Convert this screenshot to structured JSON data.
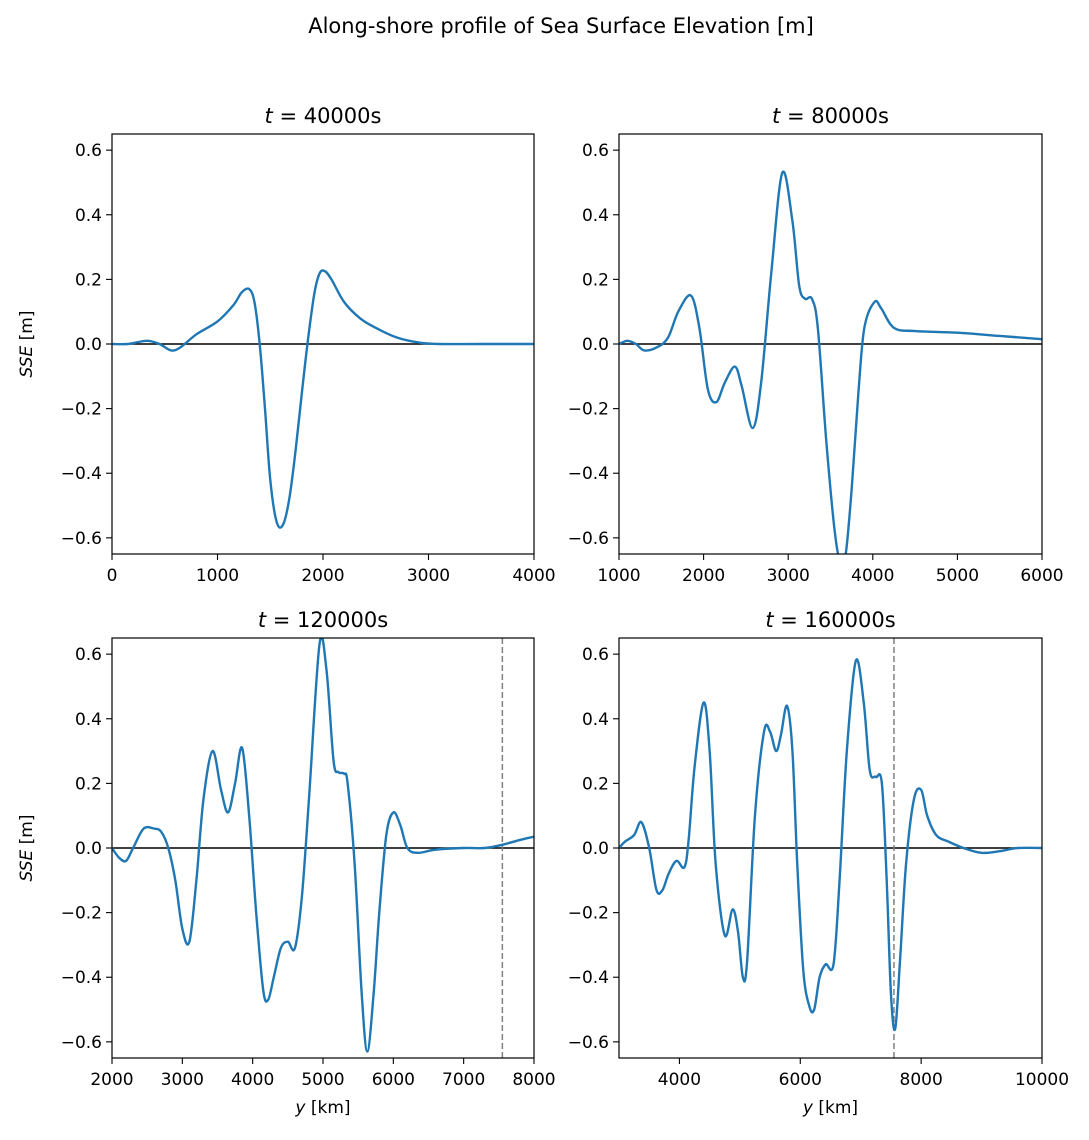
{
  "figure": {
    "suptitle": "Along-shore profile of Sea Surface Elevation [m]"
  },
  "chart_data": [
    {
      "type": "line",
      "title_var": "t",
      "title_eq": " = 40000s",
      "ylabel_var": "SSE",
      "ylabel_unit": " [m]",
      "xlabel_var": "",
      "xlabel_unit": "",
      "xlim": [
        0,
        4000
      ],
      "ylim": [
        -0.65,
        0.65
      ],
      "xticks": [
        0,
        1000,
        2000,
        3000,
        4000
      ],
      "xtick_labels": [
        "0",
        "1000",
        "2000",
        "3000",
        "4000"
      ],
      "yticks": [
        -0.6,
        -0.4,
        -0.2,
        0.0,
        0.2,
        0.4,
        0.6
      ],
      "ytick_labels": [
        "−0.6",
        "−0.4",
        "−0.2",
        "0.0",
        "0.2",
        "0.4",
        "0.6"
      ],
      "zero_line": true,
      "vline": null,
      "line_color": "#1f77b4",
      "series": [
        {
          "x": [
            0,
            150,
            330,
            450,
            560,
            650,
            800,
            1000,
            1150,
            1230,
            1300,
            1350,
            1400,
            1450,
            1500,
            1560,
            1620,
            1680,
            1740,
            1800,
            1860,
            1920,
            1970,
            2020,
            2080,
            2200,
            2350,
            2500,
            2700,
            2900,
            3100,
            3500,
            4000
          ],
          "y": [
            0.0,
            0.0,
            0.01,
            0.0,
            -0.02,
            -0.01,
            0.03,
            0.07,
            0.12,
            0.16,
            0.17,
            0.13,
            0.0,
            -0.2,
            -0.42,
            -0.55,
            -0.56,
            -0.48,
            -0.33,
            -0.15,
            0.02,
            0.16,
            0.22,
            0.225,
            0.2,
            0.13,
            0.08,
            0.05,
            0.02,
            0.005,
            0.0,
            0.0,
            0.0
          ]
        }
      ]
    },
    {
      "type": "line",
      "title_var": "t",
      "title_eq": " = 80000s",
      "ylabel_var": "",
      "ylabel_unit": "",
      "xlabel_var": "",
      "xlabel_unit": "",
      "xlim": [
        1000,
        6000
      ],
      "ylim": [
        -0.65,
        0.65
      ],
      "xticks": [
        1000,
        2000,
        3000,
        4000,
        5000,
        6000
      ],
      "xtick_labels": [
        "1000",
        "2000",
        "3000",
        "4000",
        "5000",
        "6000"
      ],
      "yticks": [
        -0.6,
        -0.4,
        -0.2,
        0.0,
        0.2,
        0.4,
        0.6
      ],
      "ytick_labels": [
        "−0.6",
        "−0.4",
        "−0.2",
        "0.0",
        "0.2",
        "0.4",
        "0.6"
      ],
      "zero_line": true,
      "vline": null,
      "line_color": "#1f77b4",
      "series": [
        {
          "x": [
            1000,
            1100,
            1200,
            1300,
            1450,
            1580,
            1700,
            1850,
            1950,
            2050,
            2150,
            2250,
            2370,
            2450,
            2580,
            2680,
            2800,
            2930,
            3050,
            3130,
            3200,
            3280,
            3350,
            3450,
            3550,
            3620,
            3680,
            3750,
            3830,
            3900,
            4020,
            4100,
            4250,
            4500,
            5000,
            5500,
            6000
          ],
          "y": [
            0.0,
            0.01,
            0.0,
            -0.02,
            -0.01,
            0.02,
            0.1,
            0.15,
            0.05,
            -0.14,
            -0.18,
            -0.12,
            -0.07,
            -0.13,
            -0.26,
            -0.12,
            0.22,
            0.53,
            0.38,
            0.18,
            0.14,
            0.14,
            0.05,
            -0.3,
            -0.58,
            -0.68,
            -0.65,
            -0.45,
            -0.15,
            0.05,
            0.13,
            0.11,
            0.05,
            0.04,
            0.035,
            0.025,
            0.015
          ]
        }
      ]
    },
    {
      "type": "line",
      "title_var": "t",
      "title_eq": " = 120000s",
      "ylabel_var": "SSE",
      "ylabel_unit": " [m]",
      "xlabel_var": "y",
      "xlabel_unit": " [km]",
      "xlim": [
        2000,
        8000
      ],
      "ylim": [
        -0.65,
        0.65
      ],
      "xticks": [
        2000,
        3000,
        4000,
        5000,
        6000,
        7000,
        8000
      ],
      "xtick_labels": [
        "2000",
        "3000",
        "4000",
        "5000",
        "6000",
        "7000",
        "8000"
      ],
      "yticks": [
        -0.6,
        -0.4,
        -0.2,
        0.0,
        0.2,
        0.4,
        0.6
      ],
      "ytick_labels": [
        "−0.6",
        "−0.4",
        "−0.2",
        "0.0",
        "0.2",
        "0.4",
        "0.6"
      ],
      "zero_line": true,
      "vline": 7550,
      "line_color": "#1f77b4",
      "series": [
        {
          "x": [
            2000,
            2100,
            2200,
            2300,
            2450,
            2600,
            2700,
            2800,
            2900,
            3000,
            3100,
            3200,
            3300,
            3430,
            3550,
            3650,
            3750,
            3850,
            3950,
            4050,
            4150,
            4220,
            4300,
            4400,
            4500,
            4600,
            4700,
            4800,
            4950,
            5050,
            5150,
            5220,
            5300,
            5350,
            5450,
            5550,
            5630,
            5720,
            5800,
            5900,
            6000,
            6100,
            6200,
            6350,
            6600,
            7000,
            7300,
            7550,
            7800,
            8000
          ],
          "y": [
            0.0,
            -0.03,
            -0.04,
            0.0,
            0.06,
            0.06,
            0.05,
            0.0,
            -0.1,
            -0.25,
            -0.29,
            -0.1,
            0.15,
            0.3,
            0.18,
            0.11,
            0.2,
            0.31,
            0.1,
            -0.2,
            -0.44,
            -0.47,
            -0.4,
            -0.31,
            -0.29,
            -0.31,
            -0.15,
            0.15,
            0.63,
            0.55,
            0.27,
            0.235,
            0.23,
            0.2,
            -0.05,
            -0.45,
            -0.63,
            -0.45,
            -0.2,
            0.04,
            0.11,
            0.07,
            0.0,
            -0.015,
            -0.005,
            0.0,
            0.0,
            0.01,
            0.025,
            0.035
          ]
        }
      ]
    },
    {
      "type": "line",
      "title_var": "t",
      "title_eq": " = 160000s",
      "ylabel_var": "",
      "ylabel_unit": "",
      "xlabel_var": "y",
      "xlabel_unit": " [km]",
      "xlim": [
        3000,
        10000
      ],
      "ylim": [
        -0.65,
        0.65
      ],
      "xticks": [
        4000,
        6000,
        8000,
        10000
      ],
      "xtick_labels": [
        "4000",
        "6000",
        "8000",
        "10000"
      ],
      "yticks": [
        -0.6,
        -0.4,
        -0.2,
        0.0,
        0.2,
        0.4,
        0.6
      ],
      "ytick_labels": [
        "−0.6",
        "−0.4",
        "−0.2",
        "0.0",
        "0.2",
        "0.4",
        "0.6"
      ],
      "zero_line": true,
      "vline": 7550,
      "line_color": "#1f77b4",
      "series": [
        {
          "x": [
            3000,
            3100,
            3250,
            3370,
            3500,
            3620,
            3720,
            3820,
            3950,
            4080,
            4150,
            4250,
            4400,
            4500,
            4600,
            4750,
            4880,
            4970,
            5050,
            5120,
            5250,
            5400,
            5500,
            5600,
            5680,
            5780,
            5870,
            5950,
            6050,
            6150,
            6230,
            6320,
            6420,
            6550,
            6650,
            6770,
            6920,
            7050,
            7150,
            7250,
            7350,
            7430,
            7500,
            7570,
            7650,
            7750,
            7880,
            8000,
            8100,
            8250,
            8450,
            8700,
            9000,
            9300,
            9600,
            10000
          ],
          "y": [
            0.0,
            0.02,
            0.04,
            0.08,
            0.0,
            -0.13,
            -0.13,
            -0.08,
            -0.04,
            -0.06,
            0.02,
            0.25,
            0.45,
            0.3,
            -0.05,
            -0.27,
            -0.19,
            -0.26,
            -0.4,
            -0.35,
            0.1,
            0.36,
            0.36,
            0.3,
            0.35,
            0.44,
            0.3,
            -0.05,
            -0.38,
            -0.49,
            -0.5,
            -0.4,
            -0.36,
            -0.36,
            -0.1,
            0.3,
            0.58,
            0.45,
            0.24,
            0.22,
            0.2,
            -0.1,
            -0.45,
            -0.56,
            -0.35,
            -0.05,
            0.15,
            0.18,
            0.1,
            0.04,
            0.02,
            0.0,
            -0.015,
            -0.01,
            0.0,
            0.0
          ]
        }
      ]
    }
  ]
}
